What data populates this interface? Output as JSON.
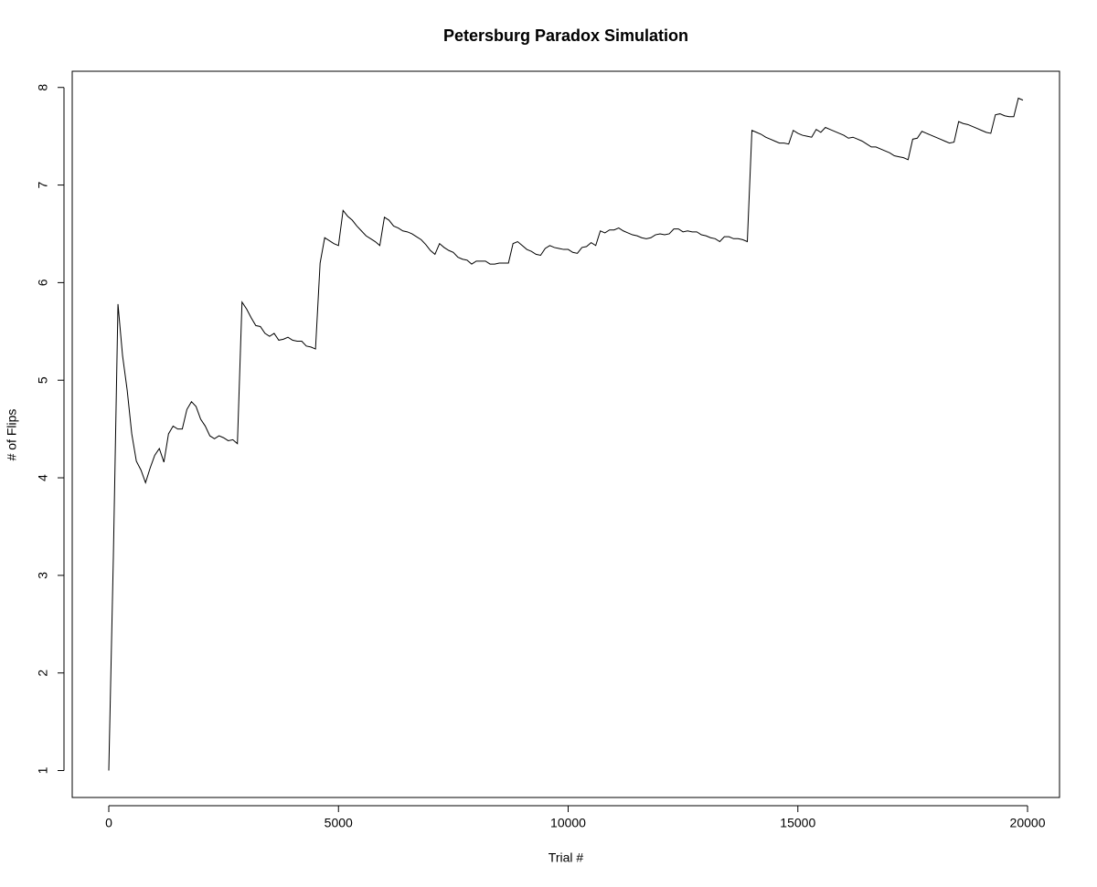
{
  "chart_data": {
    "type": "line",
    "title": "Petersburg Paradox Simulation",
    "x_label": "Trial #",
    "y_label": "# of Flips",
    "color": "#000000",
    "x": [
      0,
      100,
      200,
      300,
      400,
      500,
      600,
      700,
      800,
      900,
      1000,
      1100,
      1200,
      1300,
      1400,
      1500,
      1600,
      1700,
      1800,
      1900,
      2000,
      2100,
      2200,
      2300,
      2400,
      2500,
      2600,
      2700,
      2800,
      2900,
      3000,
      3100,
      3200,
      3300,
      3400,
      3500,
      3600,
      3700,
      3800,
      3900,
      4000,
      4100,
      4200,
      4300,
      4400,
      4500,
      4600,
      4700,
      4800,
      4900,
      5000,
      5100,
      5200,
      5300,
      5400,
      5500,
      5600,
      5700,
      5800,
      5900,
      6000,
      6100,
      6200,
      6300,
      6400,
      6500,
      6600,
      6700,
      6800,
      6900,
      7000,
      7100,
      7200,
      7300,
      7400,
      7500,
      7600,
      7700,
      7800,
      7900,
      8000,
      8100,
      8200,
      8300,
      8400,
      8500,
      8600,
      8700,
      8800,
      8900,
      9000,
      9100,
      9200,
      9300,
      9400,
      9500,
      9600,
      9700,
      9800,
      9900,
      10000,
      10100,
      10200,
      10300,
      10400,
      10500,
      10600,
      10700,
      10800,
      10900,
      11000,
      11100,
      11200,
      11300,
      11400,
      11500,
      11600,
      11700,
      11800,
      11900,
      12000,
      12100,
      12200,
      12300,
      12400,
      12500,
      12600,
      12700,
      12800,
      12900,
      13000,
      13100,
      13200,
      13300,
      13400,
      13500,
      13600,
      13700,
      13800,
      13900,
      14000,
      14100,
      14200,
      14300,
      14400,
      14500,
      14600,
      14700,
      14800,
      14900,
      15000,
      15100,
      15200,
      15300,
      15400,
      15500,
      15600,
      15700,
      15800,
      15900,
      16000,
      16100,
      16200,
      16300,
      16400,
      16500,
      16600,
      16700,
      16800,
      16900,
      17000,
      17100,
      17200,
      17300,
      17400,
      17500,
      17600,
      17700,
      17800,
      17900,
      18000,
      18100,
      18200,
      18300,
      18400,
      18500,
      18600,
      18700,
      18800,
      18900,
      19000,
      19100,
      19200,
      19300,
      19400,
      19500,
      19600,
      19700,
      19800,
      19900
    ],
    "values": [
      1.0,
      3.2,
      5.78,
      5.25,
      4.9,
      4.45,
      4.17,
      4.08,
      3.95,
      4.1,
      4.23,
      4.3,
      4.16,
      4.45,
      4.53,
      4.5,
      4.5,
      4.7,
      4.78,
      4.73,
      4.6,
      4.53,
      4.43,
      4.4,
      4.43,
      4.41,
      4.38,
      4.39,
      4.35,
      5.8,
      5.73,
      5.64,
      5.56,
      5.55,
      5.48,
      5.45,
      5.48,
      5.41,
      5.42,
      5.44,
      5.41,
      5.4,
      5.4,
      5.35,
      5.34,
      5.32,
      6.2,
      6.46,
      6.43,
      6.4,
      6.38,
      6.74,
      6.68,
      6.64,
      6.58,
      6.53,
      6.48,
      6.45,
      6.42,
      6.38,
      6.67,
      6.64,
      6.58,
      6.56,
      6.53,
      6.52,
      6.5,
      6.47,
      6.44,
      6.39,
      6.33,
      6.29,
      6.4,
      6.36,
      6.33,
      6.31,
      6.26,
      6.24,
      6.23,
      6.19,
      6.22,
      6.22,
      6.22,
      6.19,
      6.19,
      6.2,
      6.2,
      6.2,
      6.4,
      6.42,
      6.38,
      6.34,
      6.32,
      6.29,
      6.28,
      6.35,
      6.38,
      6.36,
      6.35,
      6.34,
      6.34,
      6.31,
      6.3,
      6.36,
      6.37,
      6.41,
      6.38,
      6.53,
      6.51,
      6.54,
      6.54,
      6.56,
      6.53,
      6.51,
      6.49,
      6.48,
      6.46,
      6.45,
      6.46,
      6.49,
      6.5,
      6.49,
      6.5,
      6.55,
      6.55,
      6.52,
      6.53,
      6.52,
      6.52,
      6.49,
      6.48,
      6.46,
      6.45,
      6.42,
      6.47,
      6.47,
      6.45,
      6.45,
      6.44,
      6.42,
      7.56,
      7.54,
      7.52,
      7.49,
      7.47,
      7.45,
      7.43,
      7.43,
      7.42,
      7.56,
      7.53,
      7.51,
      7.5,
      7.49,
      7.57,
      7.54,
      7.59,
      7.57,
      7.55,
      7.53,
      7.51,
      7.48,
      7.49,
      7.47,
      7.45,
      7.42,
      7.39,
      7.39,
      7.37,
      7.35,
      7.33,
      7.3,
      7.29,
      7.28,
      7.26,
      7.47,
      7.48,
      7.55,
      7.53,
      7.51,
      7.49,
      7.47,
      7.45,
      7.43,
      7.44,
      7.65,
      7.63,
      7.62,
      7.6,
      7.58,
      7.56,
      7.54,
      7.53,
      7.72,
      7.73,
      7.71,
      7.7,
      7.7,
      7.89,
      7.87
    ],
    "xlim": [
      -796,
      20696
    ],
    "ylim": [
      0.724,
      8.166
    ],
    "xticks": [
      0,
      5000,
      10000,
      15000,
      20000
    ],
    "yticks": [
      1,
      2,
      3,
      4,
      5,
      6,
      7,
      8
    ]
  }
}
